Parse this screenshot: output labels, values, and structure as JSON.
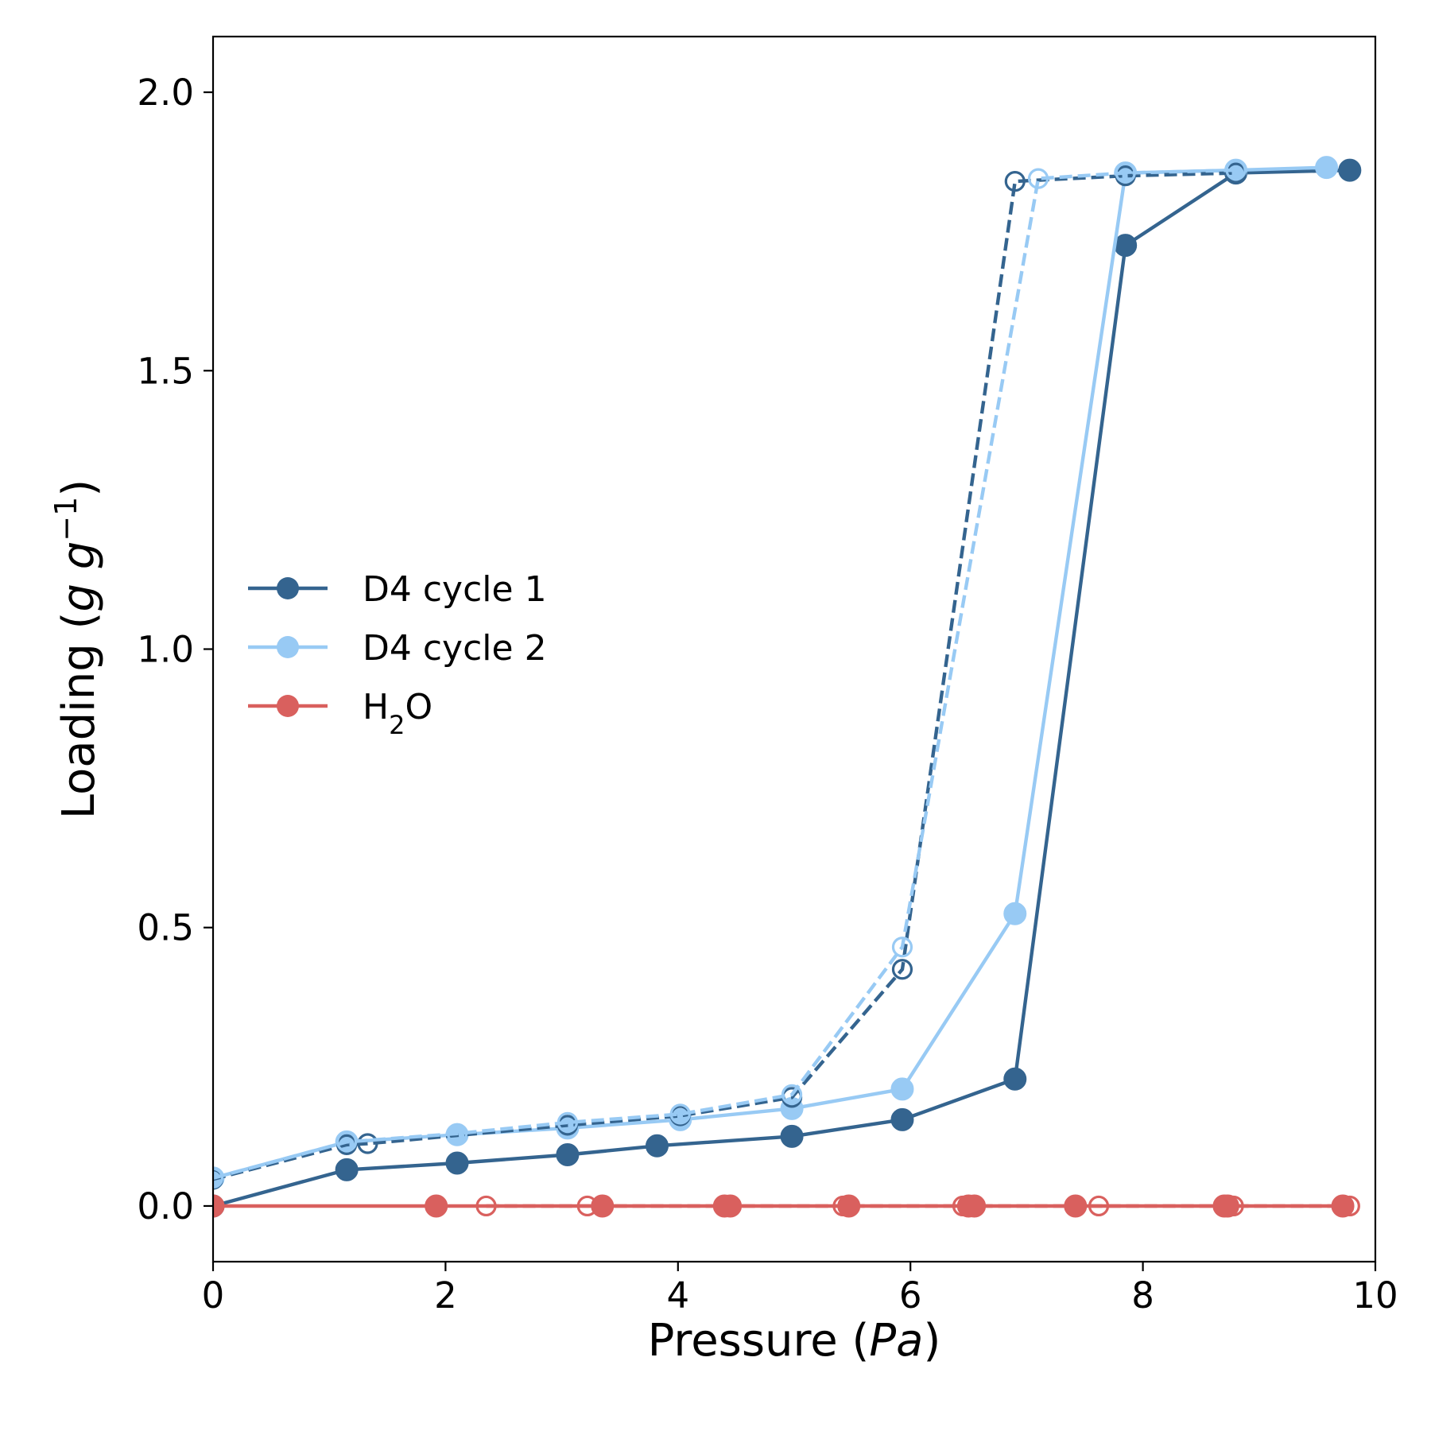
{
  "chart_data": {
    "type": "line",
    "xlabel": "Pressure (Pa)",
    "ylabel": "Loading (g g⁻¹)",
    "xlim": [
      0,
      10
    ],
    "ylim": [
      -0.1,
      2.1
    ],
    "xticks": [
      0,
      2,
      4,
      6,
      8,
      10
    ],
    "xtick_labels": [
      "0",
      "2",
      "4",
      "6",
      "8",
      "10"
    ],
    "yticks": [
      0.0,
      0.5,
      1.0,
      1.5,
      2.0
    ],
    "ytick_labels": [
      "0.0",
      "0.5",
      "1.0",
      "1.5",
      "2.0"
    ],
    "grid": false,
    "legend_position": "center-left",
    "series": [
      {
        "name": "D4 cycle 1",
        "color": "#34648f",
        "branch": "adsorption",
        "style": "solid-filled-markers",
        "x": [
          0.0,
          1.15,
          2.1,
          3.05,
          3.82,
          4.98,
          5.93,
          6.9,
          7.85,
          8.8,
          9.78
        ],
        "y": [
          0.0,
          0.065,
          0.077,
          0.092,
          0.108,
          0.125,
          0.155,
          0.228,
          1.725,
          1.855,
          1.86
        ]
      },
      {
        "name": "D4 cycle 2",
        "color": "#98caf4",
        "branch": "adsorption",
        "style": "solid-filled-markers",
        "x": [
          0.0,
          1.15,
          2.1,
          3.05,
          4.02,
          4.98,
          5.93,
          6.9,
          7.85,
          8.8,
          9.58
        ],
        "y": [
          0.05,
          0.115,
          0.128,
          0.14,
          0.155,
          0.175,
          0.21,
          0.525,
          1.855,
          1.86,
          1.865
        ]
      },
      {
        "name": "H₂O",
        "color": "#d9605e",
        "branch": "adsorption",
        "style": "solid-filled-markers",
        "x": [
          0.0,
          1.92,
          3.35,
          4.4,
          4.45,
          5.47,
          6.5,
          6.55,
          7.42,
          8.7,
          8.73,
          9.72
        ],
        "y": [
          0.0,
          0.0,
          0.0,
          0.0,
          0.0,
          0.0,
          0.0,
          0.0,
          0.0,
          0.0,
          0.0,
          0.0
        ]
      },
      {
        "color": "#34648f",
        "branch": "desorption",
        "style": "dashed-open-markers",
        "x": [
          0.0,
          1.15,
          1.33,
          3.05,
          4.02,
          4.98,
          5.93,
          6.9,
          7.85,
          8.8
        ],
        "y": [
          0.048,
          0.11,
          0.112,
          0.145,
          0.162,
          0.195,
          0.425,
          1.84,
          1.85,
          1.855
        ]
      },
      {
        "color": "#98caf4",
        "branch": "desorption",
        "style": "dashed-open-markers",
        "x": [
          0.0,
          1.15,
          2.1,
          3.05,
          4.02,
          4.98,
          5.93,
          7.1,
          7.85,
          8.8
        ],
        "y": [
          0.05,
          0.115,
          0.13,
          0.15,
          0.165,
          0.2,
          0.465,
          1.845,
          1.855,
          1.86
        ]
      },
      {
        "color": "#d9605e",
        "branch": "desorption",
        "style": "dashed-open-markers",
        "x": [
          2.35,
          3.22,
          5.42,
          6.45,
          7.62,
          8.78,
          9.78
        ],
        "y": [
          0.0,
          0.0,
          0.0,
          0.0,
          0.0,
          0.0,
          0.0
        ]
      }
    ]
  }
}
